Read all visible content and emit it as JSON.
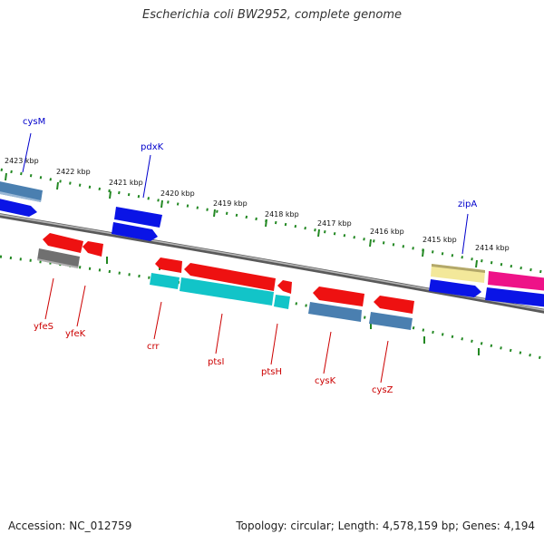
{
  "title": "Escherichia coli BW2952, complete genome",
  "footer": {
    "accession": "Accession: NC_012759",
    "summary": "Topology: circular; Length: 4,578,159 bp; Genes: 4,194"
  },
  "ticks": [
    "2423 kbp",
    "2422 kbp",
    "2421 kbp",
    "2420 kbp",
    "2419 kbp",
    "2418 kbp",
    "2417 kbp",
    "2416 kbp",
    "2415 kbp",
    "2414 kbp"
  ],
  "genes": {
    "forward": [
      "cysM",
      "pdxK",
      "zipA"
    ],
    "reverse": [
      "yfeS",
      "yfeK",
      "crr",
      "ptsI",
      "ptsH",
      "cysK",
      "cysZ"
    ]
  },
  "colors": {
    "forward_label": "#0000cc",
    "reverse_label": "#cc0000",
    "tick": "#228822",
    "backbone": "#888888",
    "blue": "#0a14e6",
    "red": "#ee1111",
    "steel": "#4a7fb0",
    "cyan": "#12c4c8",
    "gray": "#707070",
    "yellow": "#f3e89a",
    "magenta": "#ee1388"
  }
}
